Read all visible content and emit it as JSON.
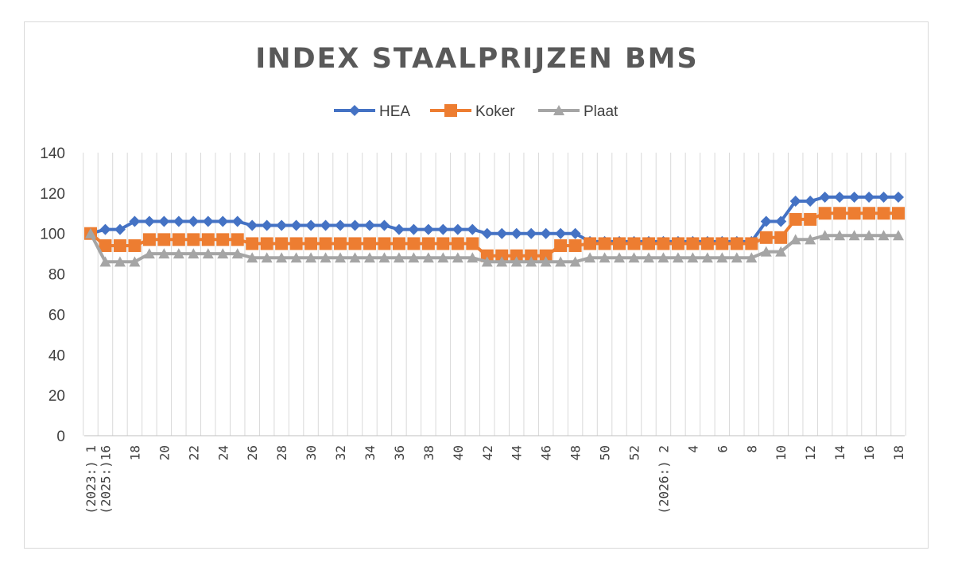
{
  "chart_data": {
    "type": "line",
    "title": "INDEX STAALPRIJZEN BMS",
    "xlabel": "",
    "ylabel": "",
    "ylim": [
      0,
      140
    ],
    "yticks": [
      0,
      20,
      40,
      60,
      80,
      100,
      120,
      140
    ],
    "grid": "vertical",
    "legend": "top-center",
    "x": [
      "(2023:) 1",
      "(2025:)16",
      "17",
      "18",
      "19",
      "20",
      "21",
      "22",
      "23",
      "24",
      "25",
      "26",
      "27",
      "28",
      "29",
      "30",
      "31",
      "32",
      "33",
      "34",
      "35",
      "36",
      "37",
      "38",
      "39",
      "40",
      "41",
      "42",
      "43",
      "44",
      "45",
      "46",
      "47",
      "48",
      "49",
      "50",
      "51",
      "52",
      "53",
      "(2026:) 2",
      "3",
      "4",
      "5",
      "6",
      "7",
      "8",
      "9",
      "10",
      "11",
      "12",
      "13",
      "14",
      "15",
      "16",
      "17",
      "18"
    ],
    "x_tick_labels": [
      "(2023:) 1",
      "(2025:)16",
      "18",
      "20",
      "22",
      "24",
      "26",
      "28",
      "30",
      "32",
      "34",
      "36",
      "38",
      "40",
      "42",
      "44",
      "46",
      "48",
      "50",
      "52",
      "(2026:) 2",
      "4",
      "6",
      "8",
      "10",
      "12",
      "14",
      "16",
      "18"
    ],
    "series": [
      {
        "name": "HEA",
        "color": "#4472c4",
        "marker": "diamond",
        "values": [
          100,
          102,
          102,
          106,
          106,
          106,
          106,
          106,
          106,
          106,
          106,
          104,
          104,
          104,
          104,
          104,
          104,
          104,
          104,
          104,
          104,
          102,
          102,
          102,
          102,
          102,
          102,
          100,
          100,
          100,
          100,
          100,
          100,
          100,
          96,
          96,
          96,
          96,
          96,
          96,
          96,
          96,
          96,
          96,
          96,
          96,
          106,
          106,
          116,
          116,
          118,
          118,
          118,
          118,
          118,
          118
        ]
      },
      {
        "name": "Koker",
        "color": "#ed7d31",
        "marker": "square",
        "values": [
          100,
          94,
          94,
          94,
          97,
          97,
          97,
          97,
          97,
          97,
          97,
          95,
          95,
          95,
          95,
          95,
          95,
          95,
          95,
          95,
          95,
          95,
          95,
          95,
          95,
          95,
          95,
          89,
          89,
          89,
          89,
          89,
          94,
          94,
          95,
          95,
          95,
          95,
          95,
          95,
          95,
          95,
          95,
          95,
          95,
          95,
          98,
          98,
          107,
          107,
          110,
          110,
          110,
          110,
          110,
          110
        ]
      },
      {
        "name": "Plaat",
        "color": "#a5a5a5",
        "marker": "triangle",
        "values": [
          100,
          86,
          86,
          86,
          90,
          90,
          90,
          90,
          90,
          90,
          90,
          88,
          88,
          88,
          88,
          88,
          88,
          88,
          88,
          88,
          88,
          88,
          88,
          88,
          88,
          88,
          88,
          86,
          86,
          86,
          86,
          86,
          86,
          86,
          88,
          88,
          88,
          88,
          88,
          88,
          88,
          88,
          88,
          88,
          88,
          88,
          91,
          91,
          97,
          97,
          99,
          99,
          99,
          99,
          99,
          99
        ]
      }
    ]
  }
}
